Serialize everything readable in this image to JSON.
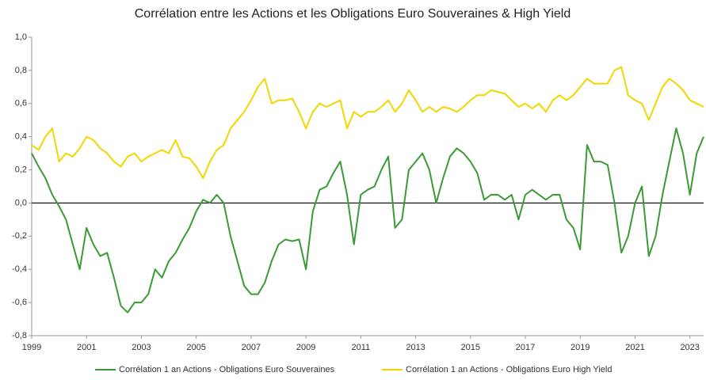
{
  "chart_data": {
    "type": "line",
    "title": "Corrélation entre les Actions et les Obligations Euro Souveraines & High Yield",
    "x": [
      1999,
      1999.25,
      1999.5,
      1999.75,
      2000,
      2000.25,
      2000.5,
      2000.75,
      2001,
      2001.25,
      2001.5,
      2001.75,
      2002,
      2002.25,
      2002.5,
      2002.75,
      2003,
      2003.25,
      2003.5,
      2003.75,
      2004,
      2004.25,
      2004.5,
      2004.75,
      2005,
      2005.25,
      2005.5,
      2005.75,
      2006,
      2006.25,
      2006.5,
      2006.75,
      2007,
      2007.25,
      2007.5,
      2007.75,
      2008,
      2008.25,
      2008.5,
      2008.75,
      2009,
      2009.25,
      2009.5,
      2009.75,
      2010,
      2010.25,
      2010.5,
      2010.75,
      2011,
      2011.25,
      2011.5,
      2011.75,
      2012,
      2012.25,
      2012.5,
      2012.75,
      2013,
      2013.25,
      2013.5,
      2013.75,
      2014,
      2014.25,
      2014.5,
      2014.75,
      2015,
      2015.25,
      2015.5,
      2015.75,
      2016,
      2016.25,
      2016.5,
      2016.75,
      2017,
      2017.25,
      2017.5,
      2017.75,
      2018,
      2018.25,
      2018.5,
      2018.75,
      2019,
      2019.25,
      2019.5,
      2019.75,
      2020,
      2020.25,
      2020.5,
      2020.75,
      2021,
      2021.25,
      2021.5,
      2021.75,
      2022,
      2022.25,
      2022.5,
      2022.75,
      2023,
      2023.25,
      2023.5
    ],
    "series": [
      {
        "name": "Corrélation 1 an Actions - Obligations Euro Souveraines",
        "color": "#3a9a35",
        "values": [
          0.3,
          0.22,
          0.15,
          0.05,
          -0.02,
          -0.1,
          -0.25,
          -0.4,
          -0.15,
          -0.25,
          -0.32,
          -0.3,
          -0.45,
          -0.62,
          -0.66,
          -0.6,
          -0.6,
          -0.55,
          -0.4,
          -0.45,
          -0.35,
          -0.3,
          -0.22,
          -0.15,
          -0.05,
          0.02,
          0.0,
          0.05,
          0.0,
          -0.2,
          -0.35,
          -0.5,
          -0.55,
          -0.55,
          -0.48,
          -0.35,
          -0.25,
          -0.22,
          -0.23,
          -0.22,
          -0.4,
          -0.05,
          0.08,
          0.1,
          0.18,
          0.25,
          0.05,
          -0.25,
          0.05,
          0.08,
          0.1,
          0.2,
          0.28,
          -0.15,
          -0.1,
          0.2,
          0.25,
          0.3,
          0.2,
          0.0,
          0.15,
          0.28,
          0.33,
          0.3,
          0.25,
          0.18,
          0.02,
          0.05,
          0.05,
          0.02,
          0.05,
          -0.1,
          0.05,
          0.08,
          0.05,
          0.02,
          0.05,
          0.05,
          -0.1,
          -0.15,
          -0.28,
          0.35,
          0.25,
          0.25,
          0.23,
          0.0,
          -0.3,
          -0.2,
          0.0,
          0.1,
          -0.32,
          -0.2,
          0.05,
          0.25,
          0.45,
          0.3,
          0.05,
          0.3,
          0.4
        ]
      },
      {
        "name": "Corrélation 1 an Actions - Obligations Euro High Yield",
        "color": "#f2d600",
        "values": [
          0.35,
          0.32,
          0.4,
          0.45,
          0.25,
          0.3,
          0.28,
          0.33,
          0.4,
          0.38,
          0.33,
          0.3,
          0.25,
          0.22,
          0.28,
          0.3,
          0.25,
          0.28,
          0.3,
          0.32,
          0.3,
          0.38,
          0.28,
          0.27,
          0.22,
          0.15,
          0.25,
          0.32,
          0.35,
          0.45,
          0.5,
          0.55,
          0.62,
          0.7,
          0.75,
          0.6,
          0.62,
          0.62,
          0.63,
          0.55,
          0.45,
          0.55,
          0.6,
          0.58,
          0.6,
          0.62,
          0.45,
          0.55,
          0.52,
          0.55,
          0.55,
          0.58,
          0.62,
          0.55,
          0.6,
          0.68,
          0.62,
          0.55,
          0.58,
          0.55,
          0.58,
          0.57,
          0.55,
          0.58,
          0.62,
          0.65,
          0.65,
          0.68,
          0.67,
          0.66,
          0.62,
          0.58,
          0.6,
          0.57,
          0.6,
          0.55,
          0.62,
          0.65,
          0.62,
          0.65,
          0.7,
          0.75,
          0.72,
          0.72,
          0.72,
          0.8,
          0.82,
          0.65,
          0.62,
          0.6,
          0.5,
          0.6,
          0.7,
          0.75,
          0.72,
          0.68,
          0.62,
          0.6,
          0.58
        ]
      }
    ],
    "xlim": [
      1999,
      2023.5
    ],
    "xticks": [
      1999,
      2001,
      2003,
      2005,
      2007,
      2009,
      2011,
      2013,
      2015,
      2017,
      2019,
      2021,
      2023
    ],
    "ylim": [
      -0.8,
      1.0
    ],
    "yticks": [
      {
        "value": -0.8,
        "label": "-0,8"
      },
      {
        "value": -0.6,
        "label": "-0,6"
      },
      {
        "value": -0.4,
        "label": "-0,4"
      },
      {
        "value": -0.2,
        "label": "-0,2"
      },
      {
        "value": 0,
        "label": "0,0"
      },
      {
        "value": 0.2,
        "label": "0,2"
      },
      {
        "value": 0.4,
        "label": "0,4"
      },
      {
        "value": 0.6,
        "label": "0,6"
      },
      {
        "value": 0.8,
        "label": "0,8"
      },
      {
        "value": 1.0,
        "label": "1,0"
      }
    ],
    "grid": false,
    "legend": "bottom"
  }
}
